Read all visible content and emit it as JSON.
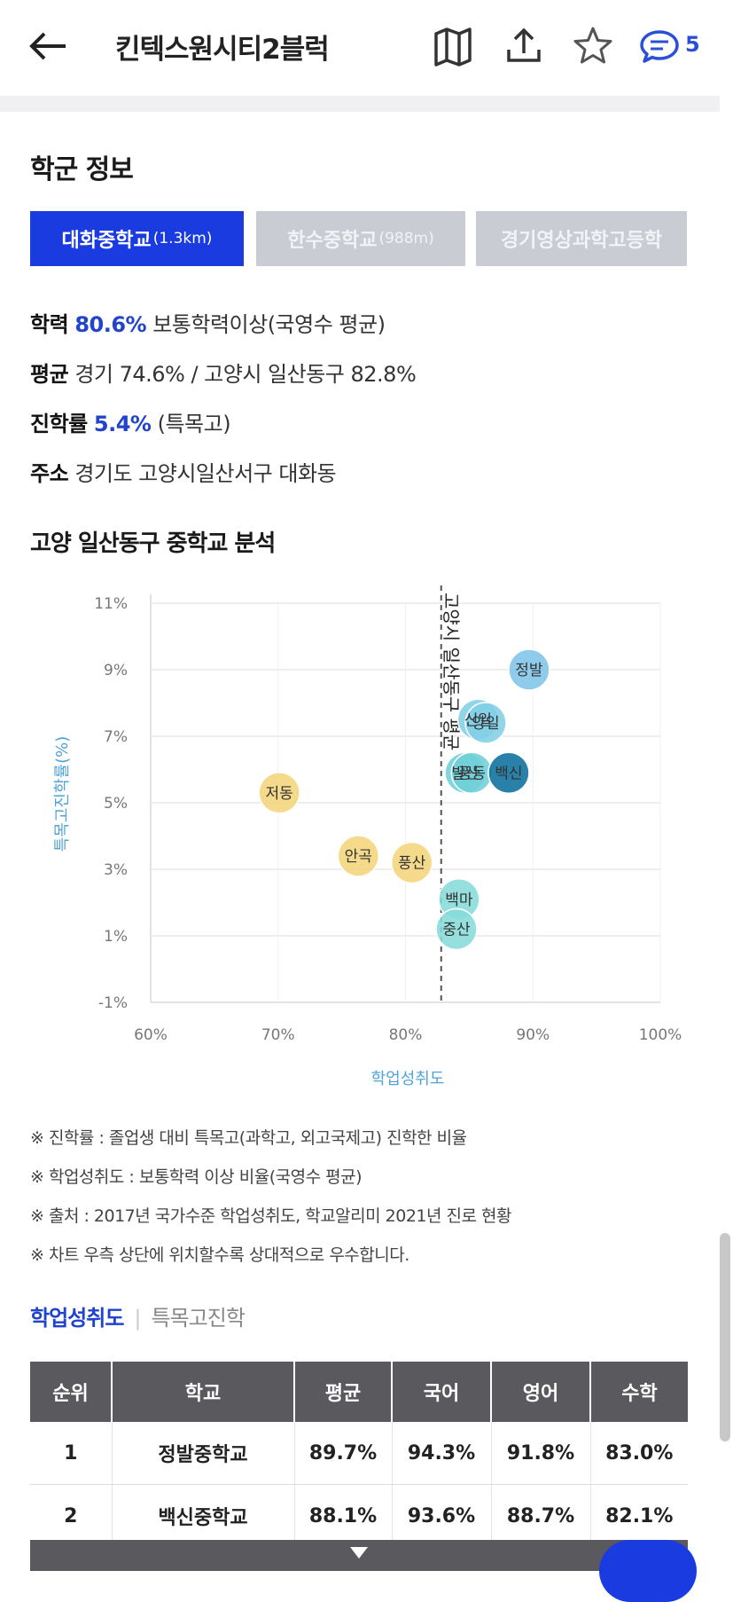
{
  "header": {
    "title": "킨텍스원시티2블럭",
    "comment_count": "5"
  },
  "school_section": {
    "title": "학군 정보",
    "tabs": [
      {
        "name": "대화중학교",
        "distance": "(1.3km)",
        "active": true
      },
      {
        "name": "한수중학교",
        "distance": "(988m)",
        "active": false
      },
      {
        "name": "경기영상과학고등학",
        "distance": "",
        "active": false
      }
    ],
    "info": {
      "achievement_label": "학력",
      "achievement_value": "80.6%",
      "achievement_desc": "보통학력이상(국영수 평균)",
      "average_label": "평균",
      "average_value": "경기 74.6% / 고양시 일산동구 82.8%",
      "advance_label": "진학률",
      "advance_value": "5.4%",
      "advance_desc": "(특목고)",
      "address_label": "주소",
      "address_value": "경기도 고양시일산서구 대화동"
    }
  },
  "analysis": {
    "title": "고양 일산동구 중학교 분석"
  },
  "chart_data": {
    "type": "scatter",
    "xlabel": "학업성취도",
    "ylabel": "특목고진학률(%)",
    "xlim": [
      60,
      100
    ],
    "ylim": [
      -1,
      11
    ],
    "xticks": [
      "60%",
      "70%",
      "80%",
      "90%",
      "100%"
    ],
    "yticks": [
      "11%",
      "9%",
      "7%",
      "5%",
      "3%",
      "1%",
      "-1%"
    ],
    "grid": true,
    "reference_line": {
      "x": 82.8,
      "label": "고양시 일산동구 평균"
    },
    "points": [
      {
        "label": "정발",
        "x": 89.7,
        "y": 9.0,
        "color": "#7fc4e8"
      },
      {
        "label": "신일",
        "x": 85.7,
        "y": 7.5,
        "color": "#82cfe6"
      },
      {
        "label": "양일",
        "x": 86.3,
        "y": 7.4,
        "color": "#82cfe6"
      },
      {
        "label": "발산",
        "x": 84.7,
        "y": 5.9,
        "color": "#6fcfd8"
      },
      {
        "label": "풍동",
        "x": 85.2,
        "y": 5.9,
        "color": "#6fcfd8"
      },
      {
        "label": "백신",
        "x": 88.1,
        "y": 5.9,
        "color": "#0b6e9c"
      },
      {
        "label": "저동",
        "x": 70.1,
        "y": 5.3,
        "color": "#f3d57a"
      },
      {
        "label": "안곡",
        "x": 76.3,
        "y": 3.4,
        "color": "#f3d57a"
      },
      {
        "label": "풍산",
        "x": 80.5,
        "y": 3.2,
        "color": "#f3d57a"
      },
      {
        "label": "백마",
        "x": 84.2,
        "y": 2.1,
        "color": "#86dcd9"
      },
      {
        "label": "중산",
        "x": 84.0,
        "y": 1.2,
        "color": "#86dcd9"
      }
    ]
  },
  "notes": [
    "※ 진학률 : 졸업생 대비 특목고(과학고, 외고국제고) 진학한 비율",
    "※ 학업성취도 : 보통학력 이상 비율(국영수 평균)",
    "※ 출처 : 2017년 국가수준 학업성취도, 학교알리미 2021년 진로 현황",
    "※ 차트 우측 상단에 위치할수록 상대적으로 우수합니다."
  ],
  "subtabs": {
    "active": "학업성취도",
    "inactive": "특목고진학"
  },
  "table": {
    "headers": [
      "순위",
      "학교",
      "평균",
      "국어",
      "영어",
      "수학"
    ],
    "rows": [
      [
        "1",
        "정발중학교",
        "89.7%",
        "94.3%",
        "91.8%",
        "83.0%"
      ],
      [
        "2",
        "백신중학교",
        "88.1%",
        "93.6%",
        "88.7%",
        "82.1%"
      ]
    ]
  }
}
